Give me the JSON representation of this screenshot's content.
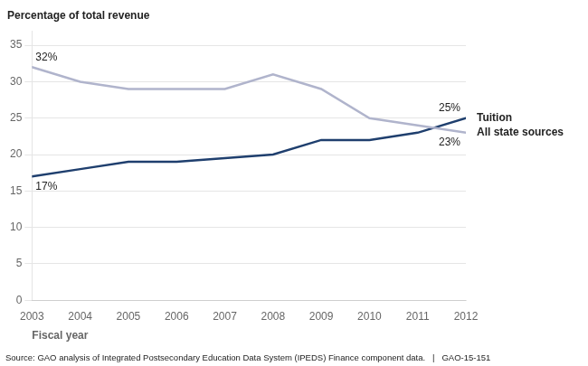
{
  "chart_data": {
    "type": "line",
    "x": [
      2003,
      2004,
      2005,
      2006,
      2007,
      2008,
      2009,
      2010,
      2011,
      2012
    ],
    "series": [
      {
        "name": "All state sources",
        "color": "#B0B4CC",
        "values": [
          32,
          30,
          29,
          29,
          29,
          31,
          29,
          25,
          24,
          23
        ]
      },
      {
        "name": "Tuition",
        "color": "#1F3F6E",
        "values": [
          17,
          18,
          19,
          19,
          19.5,
          20,
          22,
          22,
          23,
          25
        ]
      }
    ],
    "xlabel": "Fiscal year",
    "ylabel": "Percentage of total revenue",
    "xlim": [
      2003,
      2012
    ],
    "xticks": [
      2003,
      2004,
      2005,
      2006,
      2007,
      2008,
      2009,
      2010,
      2011,
      2012
    ],
    "ylim": [
      0,
      37
    ],
    "yticks": [
      0,
      5,
      10,
      15,
      20,
      25,
      30,
      35
    ],
    "grid": true,
    "annotations": [
      {
        "text": "32%",
        "x": 2003,
        "y": 32
      },
      {
        "text": "17%",
        "x": 2003,
        "y": 17
      },
      {
        "text": "25%",
        "x": 2012,
        "y": 25
      },
      {
        "text": "23%",
        "x": 2012,
        "y": 23
      }
    ],
    "source": "Source: GAO analysis of Integrated Postsecondary Education Data System (IPEDS) Finance component data.   |   GAO-15-151"
  }
}
